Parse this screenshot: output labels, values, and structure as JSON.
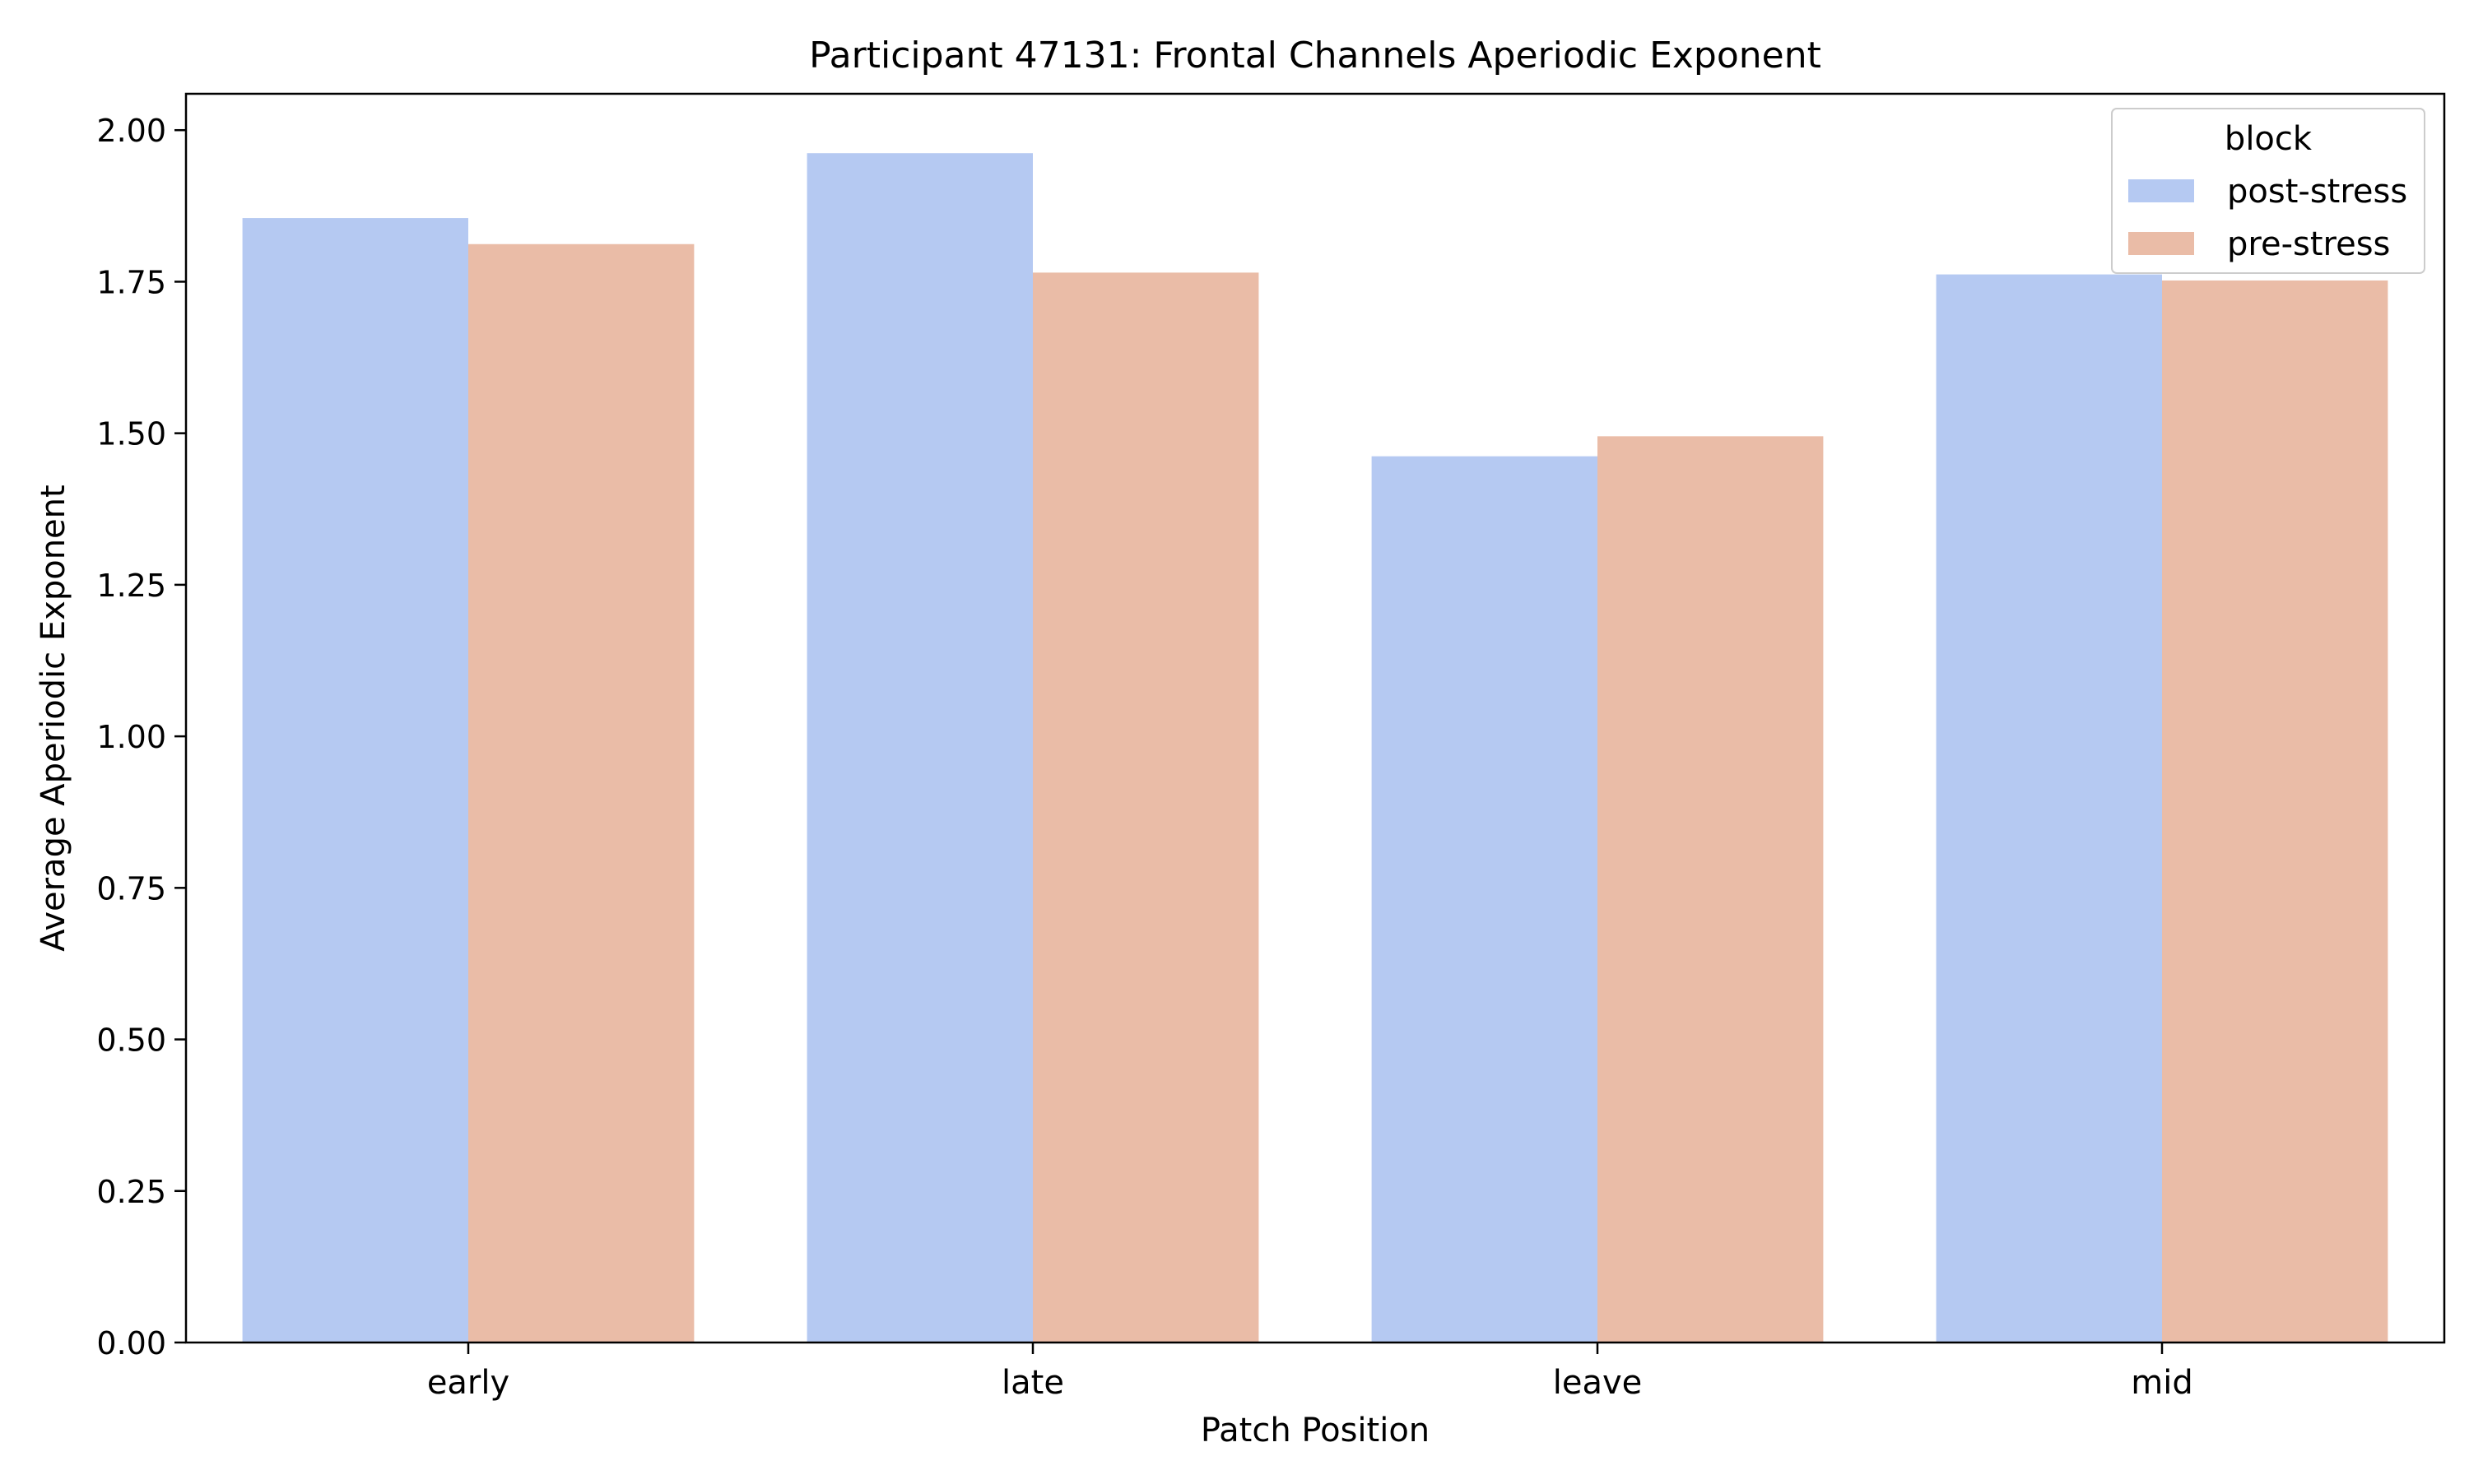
{
  "chart_data": {
    "type": "bar",
    "title": "Participant 47131: Frontal Channels Aperiodic Exponent",
    "xlabel": "Patch Position",
    "ylabel": "Average Aperiodic Exponent",
    "categories": [
      "early",
      "late",
      "leave",
      "mid"
    ],
    "series": [
      {
        "name": "post-stress",
        "color": "#b5c9f2",
        "values": [
          1.855,
          1.962,
          1.462,
          1.762
        ]
      },
      {
        "name": "pre-stress",
        "color": "#eabca7",
        "values": [
          1.812,
          1.765,
          1.495,
          1.752
        ]
      }
    ],
    "ylim": [
      0,
      2.06
    ],
    "yticks": [
      "0.00",
      "0.25",
      "0.50",
      "0.75",
      "1.00",
      "1.25",
      "1.50",
      "1.75",
      "2.00"
    ],
    "grid": false,
    "legend": {
      "title": "block",
      "position": "top-right"
    }
  }
}
